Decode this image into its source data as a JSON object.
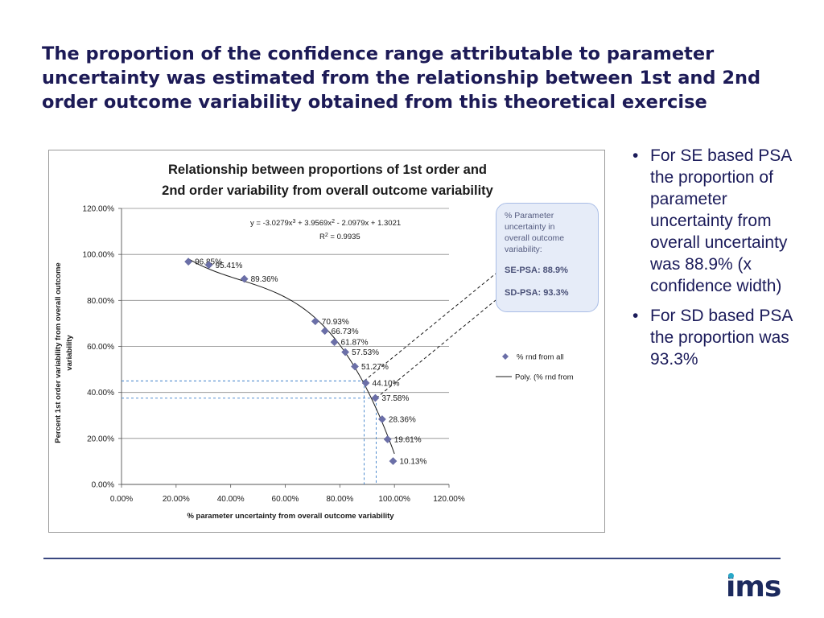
{
  "slide": {
    "title": "The proportion of the confidence range attributable to parameter uncertainty was estimated from the relationship between 1st and 2nd order outcome variability obtained from this theoretical exercise",
    "bullets": [
      "For SE based PSA the proportion of parameter uncertainty from overall uncertainty was 88.9% (x confidence width)",
      "For SD based PSA the proportion was 93.3%"
    ],
    "bullet_glyph": "•",
    "logo_text": "ims",
    "colors": {
      "title": "#1c1a56",
      "points": "#6b6fa8",
      "guides": "#3b7fc9",
      "callout_bg": "#e6ecf8",
      "callout_border": "#a9bde6",
      "rule": "#3a4880",
      "logo_dot": "#29a8c8"
    }
  },
  "callout": {
    "lines": [
      "% Parameter",
      "uncertainty in",
      "overall outcome",
      "variability:"
    ],
    "se_psa": "SE-PSA: 88.9%",
    "sd_psa": "SD-PSA: 93.3%"
  },
  "chart_data": {
    "type": "scatter",
    "title_lines": [
      "Relationship between proportions of 1st order and",
      "2nd order variability from overall outcome variability"
    ],
    "xlabel": "% parameter uncertainty from overall outcome variability",
    "ylabel_lines": [
      "Percent 1st order variability from overall outcome",
      "variability"
    ],
    "xlim": [
      0,
      1.2
    ],
    "ylim": [
      0,
      1.2
    ],
    "xticks": [
      0,
      0.2,
      0.4,
      0.6,
      0.8,
      1.0,
      1.2
    ],
    "yticks": [
      0,
      0.2,
      0.4,
      0.6,
      0.8,
      1.0,
      1.2
    ],
    "x_tick_labels": [
      "0.00%",
      "20.00%",
      "40.00%",
      "60.00%",
      "80.00%",
      "100.00%",
      "120.00%"
    ],
    "y_tick_labels": [
      "0.00%",
      "20.00%",
      "40.00%",
      "60.00%",
      "80.00%",
      "100.00%",
      "120.00%"
    ],
    "grid": "horizontal",
    "legend_position": "right",
    "series": [
      {
        "name": "% rnd from all",
        "kind": "scatter",
        "points": [
          {
            "x": 0.245,
            "y": 0.9685,
            "label": "96.85%"
          },
          {
            "x": 0.32,
            "y": 0.9541,
            "label": "95.41%"
          },
          {
            "x": 0.45,
            "y": 0.8936,
            "label": "89.36%"
          },
          {
            "x": 0.71,
            "y": 0.7093,
            "label": "70.93%"
          },
          {
            "x": 0.745,
            "y": 0.6673,
            "label": "66.73%"
          },
          {
            "x": 0.78,
            "y": 0.6187,
            "label": "61.87%"
          },
          {
            "x": 0.82,
            "y": 0.5753,
            "label": "57.53%"
          },
          {
            "x": 0.855,
            "y": 0.5127,
            "label": "51.27%"
          },
          {
            "x": 0.895,
            "y": 0.441,
            "label": "44.10%"
          },
          {
            "x": 0.93,
            "y": 0.3758,
            "label": "37.58%"
          },
          {
            "x": 0.955,
            "y": 0.2836,
            "label": "28.36%"
          },
          {
            "x": 0.975,
            "y": 0.1961,
            "label": "19.61%"
          },
          {
            "x": 0.995,
            "y": 0.1013,
            "label": "10.13%"
          }
        ]
      },
      {
        "name": "Poly. (% rnd from",
        "kind": "polynomial_trendline",
        "coefficients": [
          -3.0279,
          3.9569,
          -2.0979,
          1.3021
        ],
        "x_range": [
          0.245,
          1.0
        ]
      }
    ],
    "equation": {
      "text": "y = -3.0279x3 + 3.9569x2 - 2.0979x + 1.3021",
      "parts": [
        "y = -3.0279x",
        "3",
        " + 3.9569x",
        "2",
        " - 2.0979x + 1.3021"
      ],
      "r2_prefix": "R",
      "r2_sup": "2",
      "r2_value": " = 0.9935"
    },
    "guides": [
      {
        "name": "SE",
        "x": 0.889,
        "y": 0.45
      },
      {
        "name": "SD",
        "x": 0.933,
        "y": 0.375
      }
    ],
    "legend": [
      {
        "label": "% rnd from all",
        "marker": "diamond"
      },
      {
        "label": "Poly. (% rnd from",
        "marker": "line"
      }
    ]
  }
}
